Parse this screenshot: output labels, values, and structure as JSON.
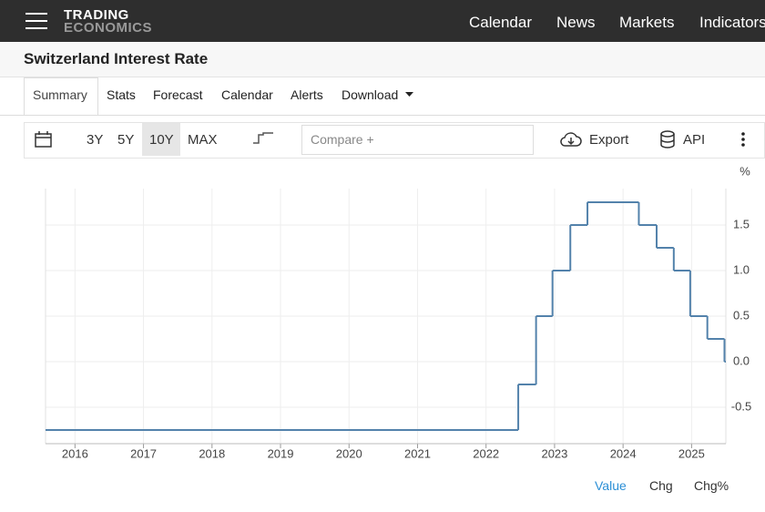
{
  "header": {
    "logo_top": "TRADING",
    "logo_bottom": "ECONOMICS",
    "nav": [
      "Calendar",
      "News",
      "Markets",
      "Indicators"
    ]
  },
  "page_title": "Switzerland Interest Rate",
  "tabs": [
    "Summary",
    "Stats",
    "Forecast",
    "Calendar",
    "Alerts",
    "Download"
  ],
  "toolbar": {
    "ranges": [
      "3Y",
      "5Y",
      "10Y",
      "MAX"
    ],
    "compare_placeholder": "Compare +",
    "export": "Export",
    "api": "API"
  },
  "chart_data": {
    "type": "step",
    "y_unit": "%",
    "x": [
      2015.57,
      2022.47,
      2022.73,
      2022.97,
      2023.23,
      2023.48,
      2024.23,
      2024.49,
      2024.74,
      2024.98,
      2025.23,
      2025.48
    ],
    "series": [
      {
        "color": "#5382ab",
        "values": [
          -0.75,
          -0.25,
          0.5,
          1.0,
          1.5,
          1.75,
          1.5,
          1.25,
          1.0,
          0.5,
          0.25,
          0
        ]
      }
    ],
    "xlim": [
      2015.57,
      2025.5
    ],
    "xticks": [
      2016,
      2017,
      2018,
      2019,
      2020,
      2021,
      2022,
      2023,
      2024,
      2025
    ],
    "ylim": [
      -0.9,
      1.9
    ],
    "yticks": [
      1.5,
      {
        "value": 1,
        "label": "1.0"
      },
      0.5,
      {
        "value": 0,
        "label": "0.0"
      },
      -0.5
    ],
    "grid": true
  },
  "footer_tabs": [
    "Value",
    "Chg",
    "Chg%"
  ]
}
